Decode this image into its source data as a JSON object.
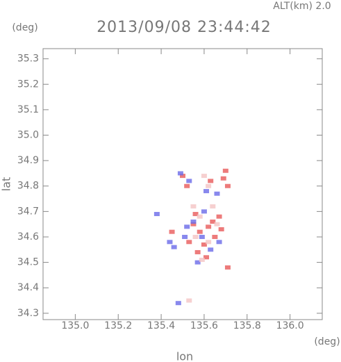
{
  "chart_data": {
    "type": "scatter",
    "title": "2013/09/08 23:44:42",
    "annotation": "ALT(km)  2.0",
    "x_label": "lon",
    "y_label": "lat",
    "x_unit": "(deg)",
    "y_unit": "(deg)",
    "xlim": [
      134.85,
      136.15
    ],
    "ylim": [
      34.275,
      35.34
    ],
    "xticks": [
      {
        "value": 135.0,
        "label": "135.0"
      },
      135.2,
      135.4,
      135.6,
      135.8,
      {
        "value": 136.0,
        "label": "136.0"
      }
    ],
    "yticks": [
      34.3,
      34.4,
      34.5,
      34.6,
      34.7,
      34.8,
      34.9,
      {
        "value": 35.0,
        "label": "35.0"
      },
      35.1,
      35.2,
      35.3
    ],
    "series": [
      {
        "color": "#e85a5a",
        "x": [
          135.5,
          135.52,
          135.63,
          135.69,
          135.71,
          135.7,
          135.55,
          135.58,
          135.62,
          135.65,
          135.6,
          135.67,
          135.53,
          135.57,
          135.64,
          135.68,
          135.61,
          135.71,
          135.45,
          135.56
        ],
        "y": [
          34.84,
          34.8,
          34.82,
          34.83,
          34.8,
          34.86,
          34.65,
          34.62,
          34.64,
          34.6,
          34.57,
          34.68,
          34.58,
          34.54,
          34.66,
          34.63,
          34.52,
          34.48,
          34.62,
          34.69
        ]
      },
      {
        "color": "#6a6ae8",
        "x": [
          135.49,
          135.53,
          135.61,
          135.66,
          135.55,
          135.51,
          135.59,
          135.63,
          135.46,
          135.44,
          135.57,
          135.67,
          135.6,
          135.48,
          135.52,
          135.38
        ],
        "y": [
          34.85,
          34.82,
          34.78,
          34.77,
          34.66,
          34.6,
          34.6,
          34.55,
          34.56,
          34.58,
          34.5,
          34.58,
          34.7,
          34.34,
          34.64,
          34.69
        ]
      },
      {
        "color": "#f4c4c4",
        "x": [
          135.6,
          135.64,
          135.58,
          135.62,
          135.56,
          135.66,
          135.59,
          135.55,
          135.62,
          135.53
        ],
        "y": [
          34.84,
          34.72,
          34.68,
          34.58,
          34.6,
          34.65,
          34.51,
          34.72,
          34.8,
          34.35
        ]
      }
    ]
  }
}
